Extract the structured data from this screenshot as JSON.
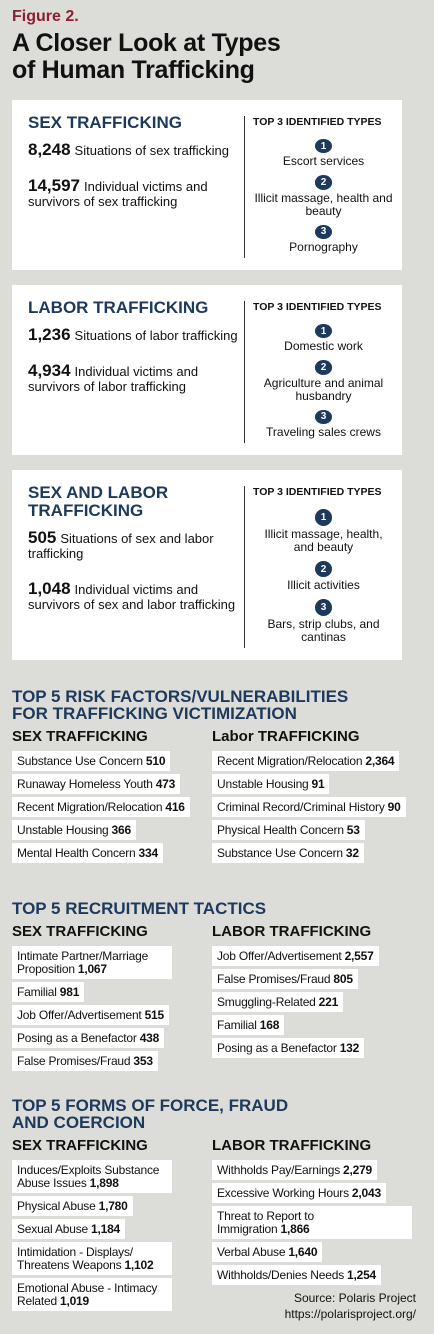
{
  "figure_label": "Figure 2.",
  "title_lines": [
    "A Closer Look at Types",
    "of Human Trafficking"
  ],
  "cards": [
    {
      "title": "SEX TRAFFICKING",
      "stats": [
        {
          "number": "8,248",
          "text": "Situations of sex trafficking"
        },
        {
          "number": "14,597",
          "text": "Individual victims and survivors of sex trafficking"
        }
      ],
      "types_heading": "TOP 3 IDENTIFIED TYPES",
      "types": [
        {
          "rank": "1",
          "label": "Escort services"
        },
        {
          "rank": "2",
          "label": "Illicit massage, health and beauty"
        },
        {
          "rank": "3",
          "label": "Pornography"
        }
      ]
    },
    {
      "title": "LABOR TRAFFICKING",
      "stats": [
        {
          "number": "1,236",
          "text": "Situations of labor trafficking"
        },
        {
          "number": "4,934",
          "text": "Individual victims and survivors of labor trafficking"
        }
      ],
      "types_heading": "TOP 3 IDENTIFIED TYPES",
      "types": [
        {
          "rank": "1",
          "label": "Domestic work"
        },
        {
          "rank": "2",
          "label": "Agriculture and animal husbandry"
        },
        {
          "rank": "3",
          "label": "Traveling sales crews"
        }
      ]
    },
    {
      "title": "SEX AND LABOR TRAFFICKING",
      "stats": [
        {
          "number": "505",
          "text": "Situations of sex and labor trafficking"
        },
        {
          "number": "1,048",
          "text": "Individual victims and survivors of sex and labor trafficking"
        }
      ],
      "types_heading": "TOP 3 IDENTIFIED TYPES",
      "types": [
        {
          "rank": "1",
          "label": "Illicit massage, health, and beauty"
        },
        {
          "rank": "2",
          "label": "Illicit activities"
        },
        {
          "rank": "3",
          "label": "Bars, strip clubs, and cantinas"
        }
      ]
    }
  ],
  "sections": [
    {
      "title_lines": [
        "TOP 5 RISK FACTORS/VULNERABILITIES",
        "FOR TRAFFICKING VICTIMIZATION"
      ],
      "columns": [
        {
          "heading": "SEX TRAFFICKING",
          "items": [
            {
              "label": "Substance Use Concern",
              "value": "510"
            },
            {
              "label": "Runaway Homeless Youth",
              "value": "473"
            },
            {
              "label": "Recent Migration/Relocation",
              "value": "416"
            },
            {
              "label": "Unstable Housing",
              "value": "366"
            },
            {
              "label": "Mental Health Concern",
              "value": "334"
            }
          ]
        },
        {
          "heading": "Labor TRAFFICKING",
          "items": [
            {
              "label": "Recent Migration/Relocation",
              "value": "2,364"
            },
            {
              "label": "Unstable Housing",
              "value": "91"
            },
            {
              "label": "Criminal Record/Criminal History",
              "value": "90"
            },
            {
              "label": "Physical Health Concern",
              "value": "53"
            },
            {
              "label": "Substance Use Concern",
              "value": "32"
            }
          ]
        }
      ]
    },
    {
      "title_lines": [
        "TOP 5 RECRUITMENT TACTICS"
      ],
      "columns": [
        {
          "heading": "SEX TRAFFICKING",
          "items": [
            {
              "label": "Intimate Partner/Marriage Proposition",
              "value": "1,067"
            },
            {
              "label": "Familial",
              "value": "981"
            },
            {
              "label": "Job Offer/Advertisement",
              "value": "515"
            },
            {
              "label": "Posing as a Benefactor",
              "value": "438"
            },
            {
              "label": "False Promises/Fraud",
              "value": "353"
            }
          ]
        },
        {
          "heading": "LABOR TRAFFICKING",
          "items": [
            {
              "label": "Job Offer/Advertisement",
              "value": "2,557"
            },
            {
              "label": "False Promises/Fraud",
              "value": "805"
            },
            {
              "label": "Smuggling-Related",
              "value": "221"
            },
            {
              "label": "Familial",
              "value": "168"
            },
            {
              "label": "Posing as a Benefactor",
              "value": "132"
            }
          ]
        }
      ]
    },
    {
      "title_lines": [
        "TOP 5 FORMS OF FORCE, FRAUD",
        "AND COERCION"
      ],
      "columns": [
        {
          "heading": "SEX TRAFFICKING",
          "items": [
            {
              "label": "Induces/Exploits Substance Abuse Issues",
              "value": "1,898"
            },
            {
              "label": "Physical Abuse",
              "value": "1,780"
            },
            {
              "label": "Sexual Abuse",
              "value": "1,184"
            },
            {
              "label": "Intimidation - Displays/ Threatens Weapons",
              "value": "1,102"
            },
            {
              "label": "Emotional Abuse - Intimacy Related",
              "value": "1,019"
            }
          ]
        },
        {
          "heading": "LABOR TRAFFICKING",
          "items": [
            {
              "label": "Withholds Pay/Earnings",
              "value": "2,279"
            },
            {
              "label": "Excessive Working Hours",
              "value": "2,043"
            },
            {
              "label": "Threat to Report to Immigration",
              "value": "1,866"
            },
            {
              "label": "Verbal Abuse",
              "value": "1,640"
            },
            {
              "label": "Withholds/Denies Needs",
              "value": "1,254"
            }
          ]
        }
      ]
    }
  ],
  "source": {
    "line1": "Source: Polaris Project",
    "line2": "https://polarisproject.org/"
  }
}
